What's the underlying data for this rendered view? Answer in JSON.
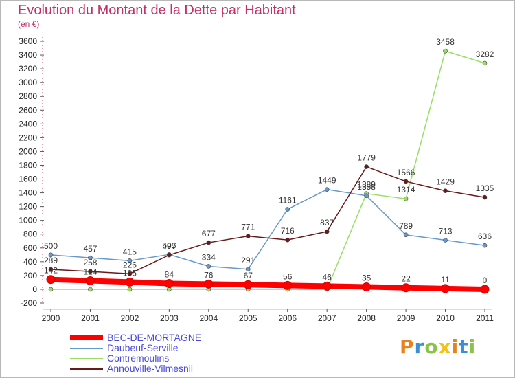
{
  "header": {
    "title": "Evolution du Montant de la Dette par Habitant",
    "subtitle": "(en €)"
  },
  "logo": {
    "text": "Proxiti",
    "colors": [
      "#e8821e",
      "#3a8fd8",
      "#8bc34a",
      "#f2c21b",
      "#e8821e",
      "#3a8fd8",
      "#8bc34a"
    ]
  },
  "chart_data": {
    "type": "line",
    "title": "Evolution du Montant de la Dette par Habitant",
    "subtitle": "(en €)",
    "xlabel": "",
    "ylabel": "",
    "ylim": [
      -200,
      3600
    ],
    "yticks": [
      -200,
      0,
      200,
      400,
      600,
      800,
      1000,
      1200,
      1400,
      1600,
      1800,
      2000,
      2200,
      2400,
      2600,
      2800,
      3000,
      3200,
      3400,
      3600
    ],
    "grid": false,
    "legend": "bottom-left",
    "categories": [
      "2000",
      "2001",
      "2002",
      "2003",
      "2004",
      "2005",
      "2006",
      "2007",
      "2008",
      "2009",
      "2010",
      "2011"
    ],
    "series": [
      {
        "name": "BEC-DE-MORTAGNE",
        "color": "#ff0000",
        "values": [
          142,
          124,
          105,
          84,
          76,
          67,
          56,
          46,
          35,
          22,
          11,
          0
        ],
        "labels": [
          "142",
          "124",
          "105",
          "84",
          "76",
          "67",
          "56",
          "46",
          "35",
          "22",
          "11",
          "0"
        ]
      },
      {
        "name": "Daubeuf-Serville",
        "color": "#6699cc",
        "values": [
          500,
          457,
          415,
          505,
          334,
          291,
          1161,
          1449,
          1358,
          789,
          713,
          636
        ],
        "labels": [
          "500",
          "457",
          "415",
          "505",
          "334",
          "291",
          "1161",
          "1449",
          "1358",
          "789",
          "713",
          "636"
        ]
      },
      {
        "name": "Contremoulins",
        "color": "#99dd66",
        "values": [
          0,
          0,
          0,
          0,
          0,
          0,
          0,
          0,
          1389,
          1314,
          3458,
          3282
        ],
        "labels": [
          "0",
          "0",
          "0",
          "0",
          "0",
          "0",
          "0",
          "0",
          "1389",
          "1314",
          "3458",
          "3282"
        ]
      },
      {
        "name": "Annouville-Vilmesnil",
        "color": "#661a1a",
        "values": [
          289,
          258,
          226,
          497,
          677,
          771,
          716,
          837,
          1779,
          1566,
          1429,
          1335
        ],
        "labels": [
          "289",
          "258",
          "226",
          "497",
          "677",
          "771",
          "716",
          "837",
          "1779",
          "1566",
          "1429",
          "1335"
        ]
      }
    ]
  }
}
